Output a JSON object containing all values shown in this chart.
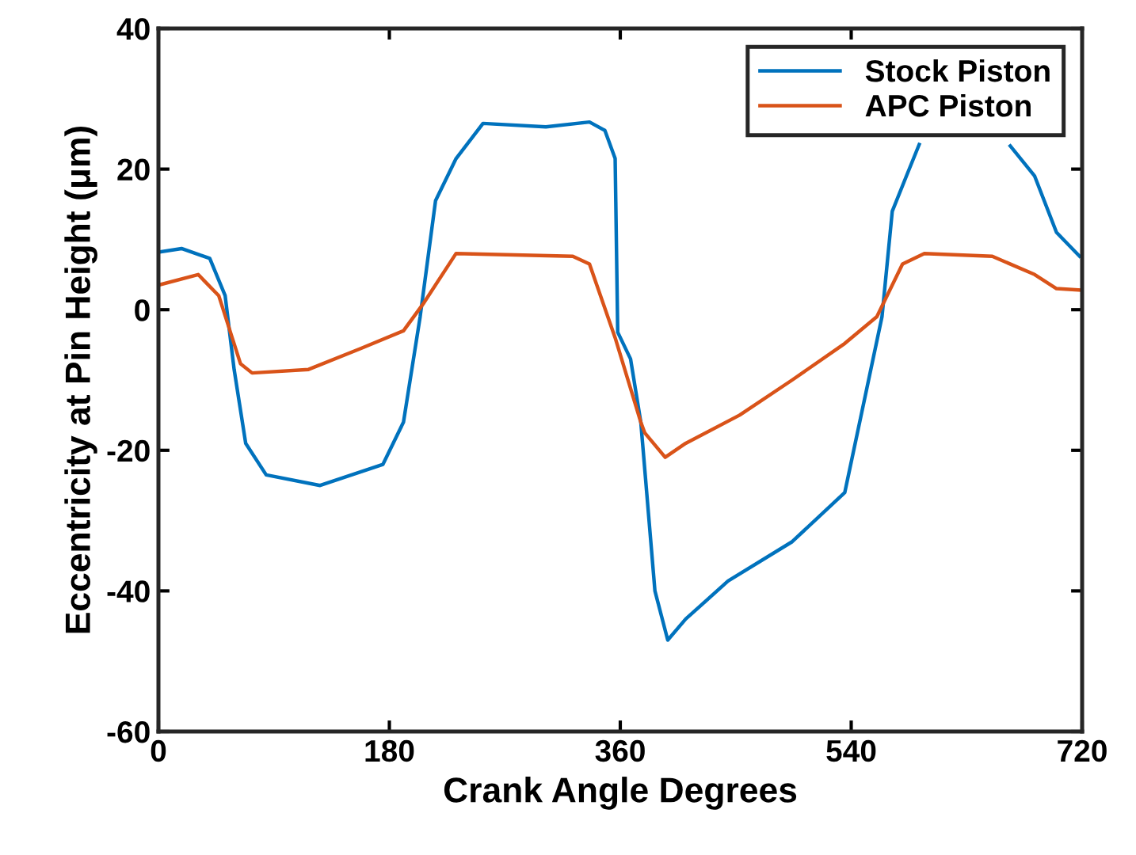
{
  "chart_data": {
    "type": "line",
    "xlabel": "Crank Angle Degrees",
    "ylabel": "Eccentricity at Pin Height (μm)",
    "xlim": [
      0,
      720
    ],
    "xticks": [
      0,
      180,
      360,
      540,
      720
    ],
    "ylim": [
      -60,
      40
    ],
    "yticks": [
      -60,
      -40,
      -20,
      0,
      20,
      40
    ],
    "grid": false,
    "legend": "top right",
    "series": [
      {
        "name": "Stock Piston",
        "color": "#0072bd",
        "x": [
          0,
          18,
          40,
          52,
          59,
          68,
          84,
          126,
          175,
          191,
          204,
          216,
          232,
          253,
          302,
          336,
          348,
          356,
          358,
          368,
          376,
          387,
          397,
          411,
          444,
          494,
          535,
          564,
          572,
          583,
          593,
          620,
          664,
          683,
          700,
          718
        ],
        "values": [
          8.2,
          8.7,
          7.3,
          2,
          -8.5,
          -19,
          -23.5,
          -25,
          -22,
          -16,
          -1,
          15.5,
          21.5,
          26.5,
          26,
          26.7,
          25.5,
          21.5,
          -3.2,
          -7,
          -16,
          -40,
          -47,
          -44,
          -38.6,
          -33,
          -26,
          -1,
          14,
          19,
          23.5,
          null,
          23.3,
          19,
          11,
          7.6
        ]
      },
      {
        "name": "APC Piston",
        "color": "#d95319",
        "x": [
          0,
          31,
          47,
          64,
          73,
          117,
          158,
          191,
          207,
          232,
          323,
          336,
          356,
          376,
          379,
          395,
          411,
          453,
          494,
          535,
          560,
          580,
          597,
          650,
          683,
          700,
          718
        ],
        "values": [
          3.5,
          5,
          2,
          -7.7,
          -9,
          -8.5,
          -5.5,
          -3,
          1,
          8,
          7.6,
          6.5,
          -4,
          -16,
          -17.5,
          -21,
          -19,
          -15,
          -10,
          -4.8,
          -1,
          6.5,
          8,
          7.6,
          5,
          3,
          2.8
        ]
      }
    ]
  }
}
